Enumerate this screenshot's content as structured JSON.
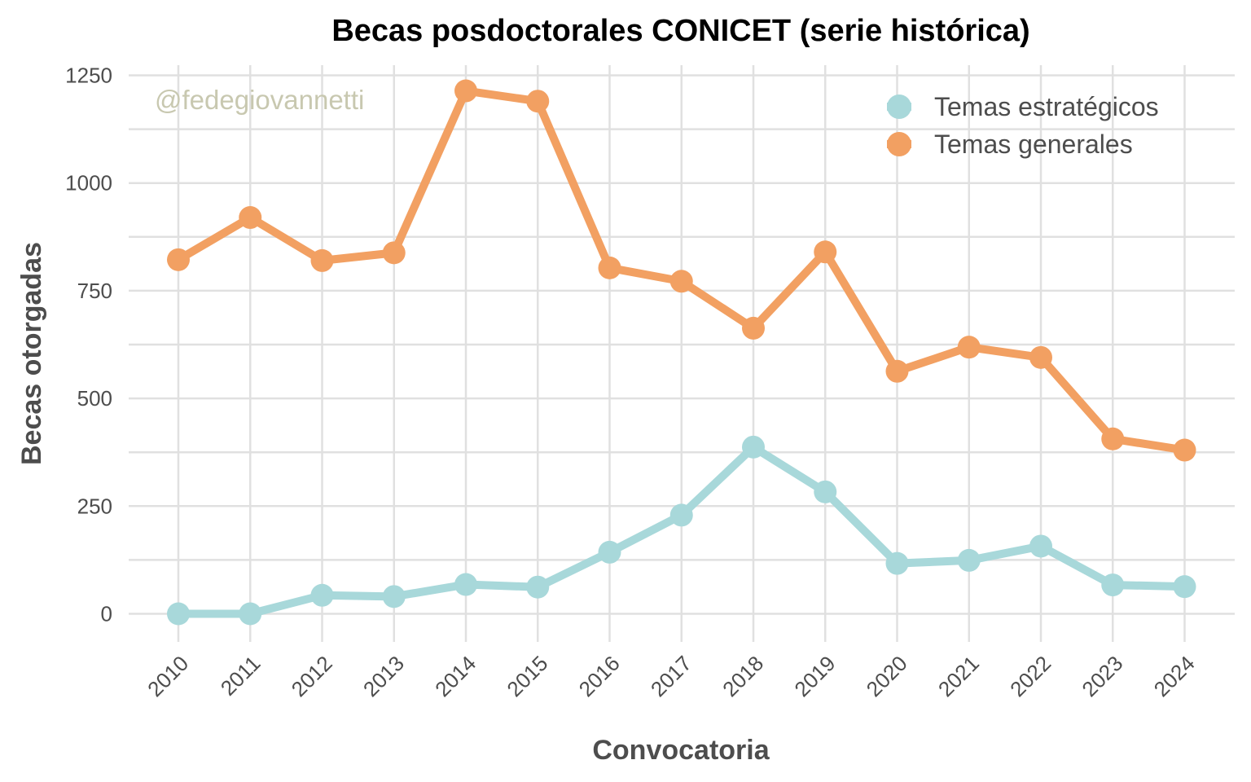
{
  "chart_data": {
    "type": "line",
    "title": "Becas posdoctorales CONICET (serie histórica)",
    "xlabel": "Convocatoria",
    "ylabel": "Becas otorgadas",
    "watermark": "@fedegiovannetti",
    "categories": [
      "2010",
      "2011",
      "2012",
      "2013",
      "2014",
      "2015",
      "2016",
      "2017",
      "2018",
      "2019",
      "2020",
      "2021",
      "2022",
      "2023",
      "2024"
    ],
    "yticks": [
      0,
      250,
      500,
      750,
      1000,
      1250
    ],
    "ylim": [
      -55,
      1255
    ],
    "grid": true,
    "legend_position": "top-right",
    "series": [
      {
        "name": "Temas estratégicos",
        "color": "#a8d8da",
        "values": [
          0,
          0,
          43,
          40,
          68,
          62,
          143,
          229,
          387,
          283,
          117,
          124,
          157,
          67,
          63
        ]
      },
      {
        "name": "Temas generales",
        "color": "#f2a062",
        "values": [
          822,
          920,
          820,
          838,
          1214,
          1190,
          803,
          772,
          663,
          840,
          563,
          619,
          595,
          406,
          380
        ]
      }
    ]
  }
}
